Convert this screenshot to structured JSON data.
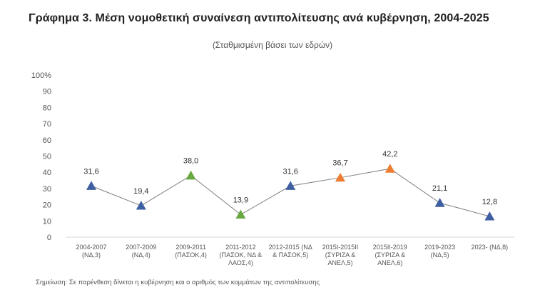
{
  "title": "Γράφημα 3. Μέση νομοθετική συναίνεση αντιπολίτευσης ανά κυβέρνηση, 2004-2025",
  "subtitle": "(Σταθμισμένη βάσει των εδρών)",
  "note": "Σημείωση: Σε παρένθεση δίνεται η κυβέρνηση και ο αριθμός των κομμάτων της αντιπολίτευσης",
  "chart_data": {
    "type": "line",
    "categories": [
      [
        "2004-2007",
        "(ΝΔ,3)"
      ],
      [
        "2007-2009",
        "(ΝΔ,4)"
      ],
      [
        "2009-2011",
        "(ΠΑΣΟΚ,4)"
      ],
      [
        "2011-2012",
        "(ΠΑΣΟΚ, ΝΔ &",
        "ΛΑΟΣ,4)"
      ],
      [
        "2012-2015 (ΝΔ",
        "& ΠΑΣΟΚ,5)"
      ],
      [
        "2015Ι-2015ΙΙ",
        "(ΣΥΡΙΖΑ &",
        "ΑΝΕΛ,5)"
      ],
      [
        "2015ΙΙ-2019",
        "(ΣΥΡΙΖΑ &",
        "ΑΝΕΛ,6)"
      ],
      [
        "2019-2023",
        "(ΝΔ,5)"
      ],
      [
        "2023- (ΝΔ,8)"
      ]
    ],
    "values": [
      31.6,
      19.4,
      38.0,
      13.9,
      31.6,
      36.7,
      42.2,
      21.1,
      12.8
    ],
    "data_labels": [
      "31,6",
      "19,4",
      "38,0",
      "13,9",
      "31,6",
      "36,7",
      "42,2",
      "21,1",
      "12,8"
    ],
    "marker_colors": [
      "#3f5fa3",
      "#3f5fa3",
      "#6aa842",
      "#6aa842",
      "#3f5fa3",
      "#ed7d31",
      "#ed7d31",
      "#3f5fa3",
      "#3f5fa3"
    ],
    "line_color": "#7f7f7f",
    "ylim": [
      0,
      100
    ],
    "yticks": [
      "0",
      "10",
      "20",
      "30",
      "40",
      "50",
      "60",
      "70",
      "80",
      "90",
      "100%"
    ],
    "grid": false,
    "marker": "triangle"
  }
}
